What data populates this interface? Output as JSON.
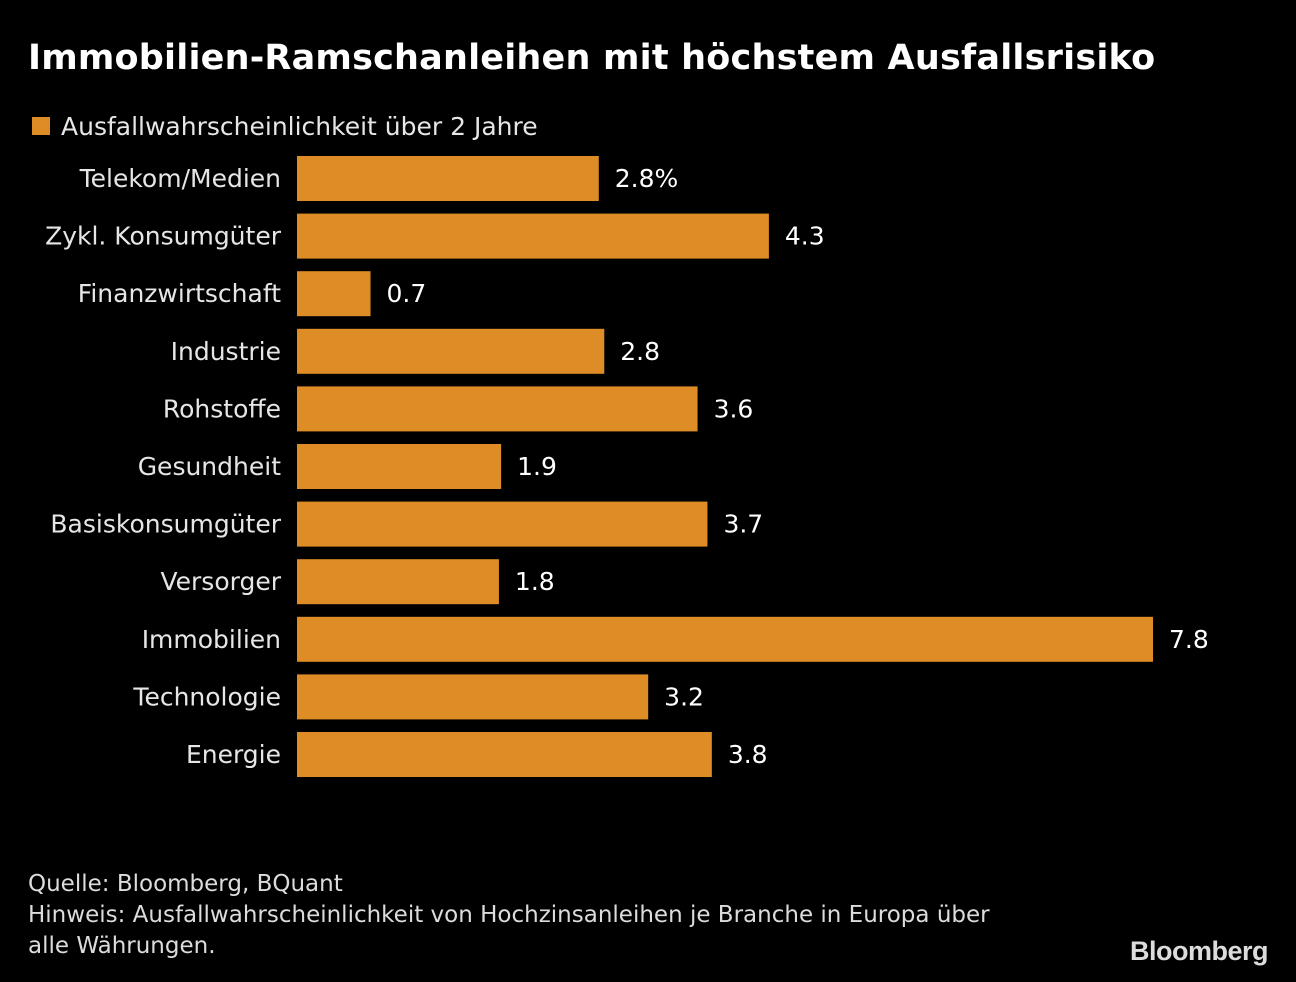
{
  "chart_data": {
    "type": "bar",
    "orientation": "horizontal",
    "title": "Immobilien-Ramschanleihen mit höchstem Ausfallsrisiko",
    "categories": [
      "Telekom/Medien",
      "Zykl. Konsumgüter",
      "Finanzwirtschaft",
      "Industrie",
      "Rohstoffe",
      "Gesundheit",
      "Basiskonsumgüter",
      "Versorger",
      "Immobilien",
      "Technologie",
      "Energie"
    ],
    "series": [
      {
        "name": "Ausfallwahrscheinlichkeit über 2 Jahre",
        "values": [
          2.75,
          4.3,
          0.67,
          2.8,
          3.65,
          1.86,
          3.74,
          1.84,
          7.8,
          3.2,
          3.78
        ],
        "labels": [
          "2.8%",
          "4.3",
          "0.7",
          "2.8",
          "3.6",
          "1.9",
          "3.7",
          "1.8",
          "7.8",
          "3.2",
          "3.8"
        ]
      }
    ],
    "xlim": [
      0,
      7.8
    ],
    "grid": false,
    "legend_position": "top-left"
  },
  "colors": {
    "background": "#000000",
    "bar": "#de8c25",
    "text": "#ffffff"
  },
  "footer": {
    "source": "Quelle: Bloomberg, BQuant",
    "note_line1": "Hinweis: Ausfallwahrscheinlichkeit von Hochzinsanleihen je Branche in Europa über",
    "note_line2": "alle Währungen."
  },
  "brand": "Bloomberg"
}
